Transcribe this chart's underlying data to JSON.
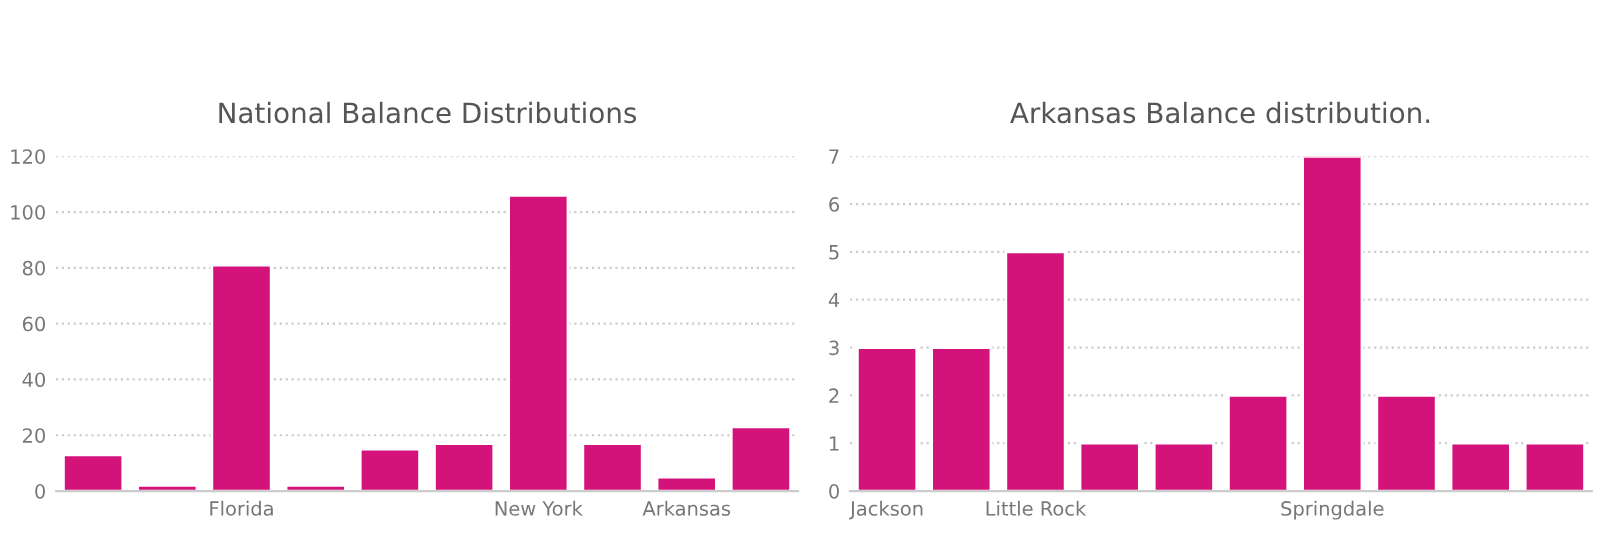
{
  "chart_data": [
    {
      "type": "bar",
      "title": "National Balance Distributions",
      "categories": [
        null,
        null,
        "Florida",
        null,
        null,
        null,
        "New York",
        null,
        "Arkansas",
        null
      ],
      "values": [
        13,
        2,
        81,
        2,
        15,
        17,
        106,
        17,
        5,
        23
      ],
      "color": "#d4137a",
      "ylim": [
        0,
        120
      ],
      "yticks": [
        0,
        20,
        40,
        60,
        80,
        100,
        120
      ],
      "grid": "y"
    },
    {
      "type": "bar",
      "title": "Arkansas Balance distribution.",
      "categories": [
        "Jackson",
        null,
        "Little Rock",
        null,
        null,
        null,
        "Springdale",
        null,
        null,
        null
      ],
      "values": [
        3,
        3,
        5,
        1,
        1,
        2,
        7,
        2,
        1,
        1
      ],
      "color": "#d4137a",
      "ylim": [
        0,
        7
      ],
      "yticks": [
        0,
        1,
        2,
        3,
        4,
        5,
        6,
        7
      ],
      "grid": "y"
    }
  ]
}
